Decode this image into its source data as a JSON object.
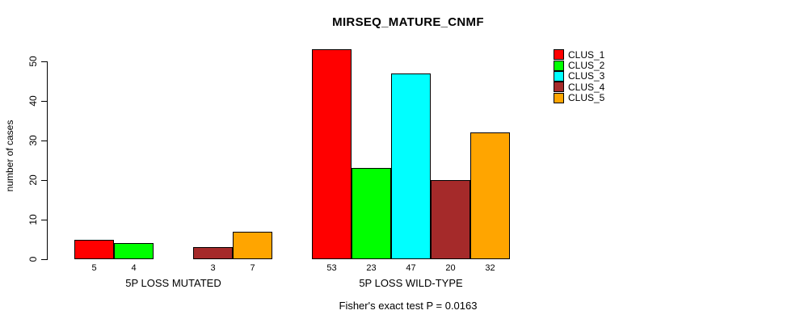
{
  "chart_data": {
    "type": "bar",
    "title": "MIRSEQ_MATURE_CNMF",
    "ylabel": "number of cases",
    "yticks": [
      0,
      10,
      20,
      30,
      40,
      50
    ],
    "ylim": [
      0,
      53
    ],
    "grid": false,
    "legend_position": "top-right-inside",
    "background_color": "#ffffff",
    "axis_color": "#000000",
    "series_names": [
      "CLUS_1",
      "CLUS_2",
      "CLUS_3",
      "CLUS_4",
      "CLUS_5"
    ],
    "series_colors": [
      "#FF0000",
      "#00FF00",
      "#00FFFF",
      "#A52A2A",
      "#FFA500"
    ],
    "groups": [
      {
        "label": "5P LOSS MUTATED",
        "values": [
          5,
          4,
          0,
          3,
          7
        ],
        "bar_labels": [
          "5",
          "4",
          "",
          "3",
          "7"
        ]
      },
      {
        "label": "5P LOSS WILD-TYPE",
        "values": [
          53,
          23,
          47,
          20,
          32
        ],
        "bar_labels": [
          "53",
          "23",
          "47",
          "20",
          "32"
        ]
      }
    ],
    "annotation": "Fisher's exact test P = 0.0163"
  }
}
